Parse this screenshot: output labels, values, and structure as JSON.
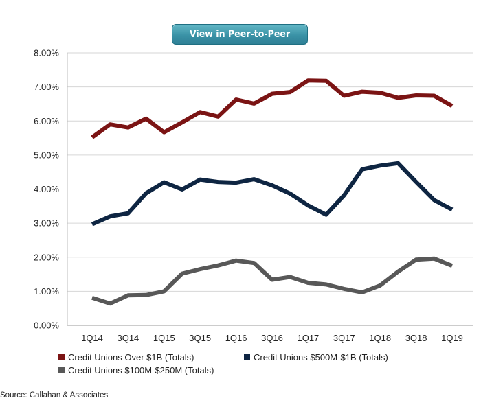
{
  "button": {
    "label": "View in Peer-to-Peer"
  },
  "source": "Source: Callahan & Associates",
  "chart_data": {
    "type": "line",
    "title": "",
    "xlabel": "",
    "ylabel": "",
    "ylim": [
      0,
      8
    ],
    "y_tick_labels": [
      "0.00%",
      "1.00%",
      "2.00%",
      "3.00%",
      "4.00%",
      "5.00%",
      "6.00%",
      "7.00%",
      "8.00%"
    ],
    "x": [
      "1Q14",
      "2Q14",
      "3Q14",
      "4Q14",
      "1Q15",
      "2Q15",
      "3Q15",
      "4Q15",
      "1Q16",
      "2Q16",
      "3Q16",
      "4Q16",
      "1Q17",
      "2Q17",
      "3Q17",
      "4Q17",
      "1Q18",
      "2Q18",
      "3Q18",
      "4Q18",
      "1Q19"
    ],
    "x_tick_labels": [
      "1Q14",
      "",
      "3Q14",
      "",
      "1Q15",
      "",
      "3Q15",
      "",
      "1Q16",
      "",
      "3Q16",
      "",
      "1Q17",
      "",
      "3Q17",
      "",
      "1Q18",
      "",
      "3Q18",
      "",
      "1Q19"
    ],
    "grid": "horizontal",
    "legend_position": "bottom",
    "series": [
      {
        "name": "Credit Unions Over $1B (Totals)",
        "color": "#7b1414",
        "values": [
          5.52,
          5.9,
          5.81,
          6.07,
          5.67,
          5.96,
          6.26,
          6.13,
          6.63,
          6.51,
          6.8,
          6.85,
          7.19,
          7.18,
          6.74,
          6.86,
          6.83,
          6.68,
          6.75,
          6.74,
          6.44
        ]
      },
      {
        "name": "Credit Unions $500M-$1B (Totals)",
        "color": "#0e2542",
        "values": [
          2.97,
          3.2,
          3.29,
          3.88,
          4.2,
          3.99,
          4.28,
          4.21,
          4.19,
          4.29,
          4.11,
          3.87,
          3.52,
          3.25,
          3.82,
          4.58,
          4.69,
          4.76,
          4.21,
          3.68,
          3.4
        ]
      },
      {
        "name": "Credit Unions $100M-$250M (Totals)",
        "color": "#585858",
        "values": [
          0.81,
          0.64,
          0.88,
          0.89,
          1.0,
          1.52,
          1.65,
          1.76,
          1.9,
          1.83,
          1.34,
          1.42,
          1.25,
          1.2,
          1.07,
          0.97,
          1.17,
          1.58,
          1.93,
          1.96,
          1.75
        ]
      }
    ]
  }
}
